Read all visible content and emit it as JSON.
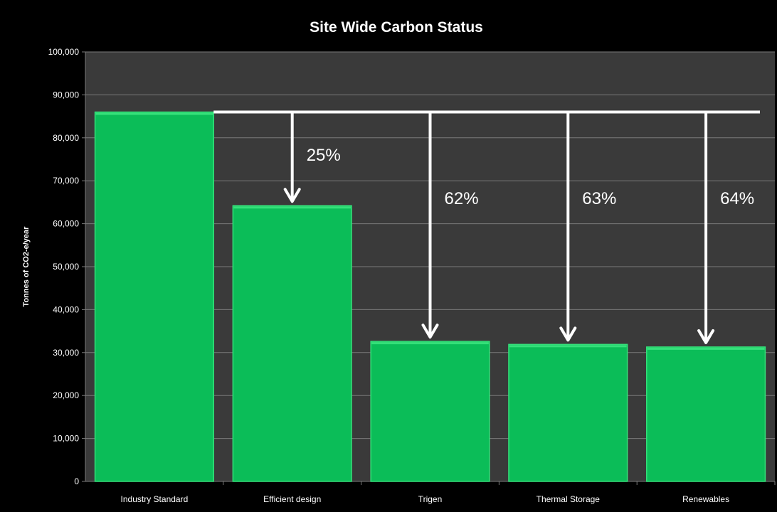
{
  "chart_data": {
    "type": "bar",
    "title": "Site Wide Carbon Status",
    "xlabel": "",
    "ylabel": "Tonnes of CO2-e/year",
    "categories": [
      "Industry Standard",
      "Efficient design",
      "Trigen",
      "Thermal Storage",
      "Renewables"
    ],
    "values": [
      86000,
      64200,
      32600,
      31900,
      31300
    ],
    "ylim": [
      0,
      100000
    ],
    "yticks": [
      0,
      10000,
      20000,
      30000,
      40000,
      50000,
      60000,
      70000,
      80000,
      90000,
      100000
    ],
    "ytick_labels": [
      "0",
      "10,000",
      "20,000",
      "30,000",
      "40,000",
      "50,000",
      "60,000",
      "70,000",
      "80,000",
      "90,000",
      "100,000"
    ],
    "grid": true,
    "reference_line": 86000,
    "reductions": [
      {
        "category": "Efficient design",
        "label": "25%"
      },
      {
        "category": "Trigen",
        "label": "62%"
      },
      {
        "category": "Thermal Storage",
        "label": "63%"
      },
      {
        "category": "Renewables",
        "label": "64%"
      }
    ],
    "colors": {
      "background": "#000000",
      "plot_area": "#3a3a3a",
      "bar_fill": "#0bbd58",
      "bar_edge": "#35e07a",
      "gridline": "#7a7a7a",
      "text": "#ffffff",
      "arrow": "#ffffff"
    }
  }
}
